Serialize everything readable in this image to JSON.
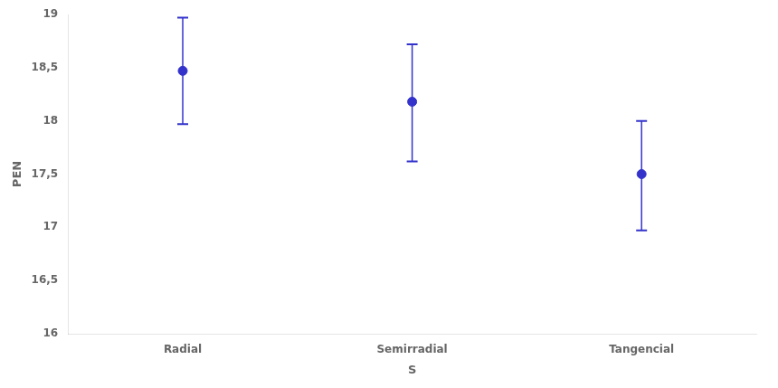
{
  "chart_data": {
    "type": "errorbar",
    "categories": [
      "Radial",
      "Semirradial",
      "Tangencial"
    ],
    "values": [
      18.47,
      18.18,
      17.5
    ],
    "upper": [
      18.97,
      18.72,
      18.0
    ],
    "lower": [
      17.97,
      17.62,
      16.97
    ],
    "xlabel": "S",
    "ylabel": "PEN",
    "ylim": [
      16.0,
      19.0
    ],
    "yticks": [
      16,
      {
        "value": 16.5,
        "label": "16,5"
      },
      17,
      {
        "value": 17.5,
        "label": "17,5"
      },
      18,
      {
        "value": 18.5,
        "label": "18,5"
      },
      19
    ],
    "color": "#3333cc",
    "marker": "o",
    "grid": false
  }
}
